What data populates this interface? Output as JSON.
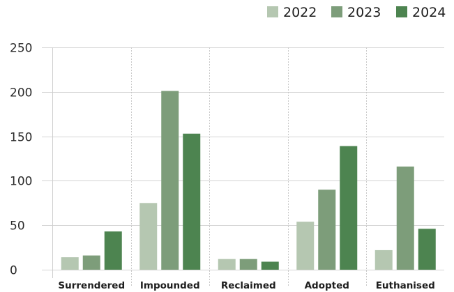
{
  "chart_data": {
    "type": "bar",
    "title": "",
    "xlabel": "",
    "ylabel": "",
    "categories": [
      "Surrendered",
      "Impounded",
      "Reclaimed",
      "Adopted",
      "Euthanised"
    ],
    "series": [
      {
        "name": "2022",
        "color": "#b5c7b1",
        "values": [
          14,
          75,
          12,
          54,
          22
        ]
      },
      {
        "name": "2023",
        "color": "#7d9d7a",
        "values": [
          16,
          201,
          12,
          90,
          116
        ]
      },
      {
        "name": "2024",
        "color": "#4d8450",
        "values": [
          43,
          153,
          9,
          139,
          46
        ]
      }
    ],
    "ylim": [
      0,
      250
    ],
    "yticks": [
      0,
      50,
      100,
      150,
      200,
      250
    ],
    "grid": true,
    "legend_position": "top-right"
  }
}
